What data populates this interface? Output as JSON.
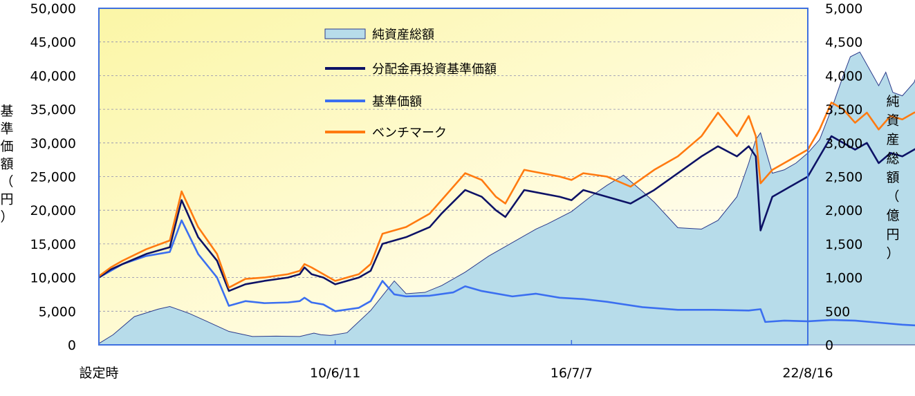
{
  "chart_data": {
    "type": "line",
    "y_axis_left": {
      "label_chars": [
        "基",
        "準",
        "価",
        "額",
        "（",
        "円",
        "）"
      ],
      "ticks": [
        "0",
        "5,000",
        "10,000",
        "15,000",
        "20,000",
        "25,000",
        "30,000",
        "35,000",
        "40,000",
        "45,000",
        "50,000"
      ],
      "ylim": [
        0,
        50000
      ]
    },
    "y_axis_right": {
      "label_chars": [
        "純",
        "資",
        "産",
        "総",
        "額",
        "（",
        "億",
        "円",
        "）"
      ],
      "ticks": [
        "0",
        "500",
        "1,000",
        "1,500",
        "2,000",
        "2,500",
        "3,000",
        "3,500",
        "4,000",
        "4,500",
        "5,000"
      ],
      "ylim": [
        0,
        5000
      ]
    },
    "x_axis": {
      "tick_labels": [
        "設定時",
        "10/6/11",
        "16/7/7",
        "22/8/16"
      ],
      "tick_positions": [
        0,
        1,
        2,
        3
      ]
    },
    "legend": {
      "position": "top-center",
      "entries": [
        "純資産総額",
        "分配金再投資基準価額",
        "基準価額",
        "ベンチマーク"
      ]
    },
    "grid": true,
    "series": [
      {
        "name": "純資産総額",
        "type": "area",
        "axis": "right",
        "color": "#b7dcea",
        "x": [
          0,
          0.06,
          0.15,
          0.25,
          0.3,
          0.38,
          0.45,
          0.55,
          0.65,
          0.75,
          0.85,
          0.91,
          0.94,
          0.98,
          1.05,
          1.15,
          1.25,
          1.3,
          1.38,
          1.45,
          1.55,
          1.65,
          1.75,
          1.85,
          1.9,
          2.0,
          2.08,
          2.15,
          2.22,
          2.3,
          2.35,
          2.45,
          2.55,
          2.62,
          2.7,
          2.75,
          2.78,
          2.8,
          2.85,
          2.9,
          2.95,
          3.0,
          3.05,
          3.1,
          3.15,
          3.18,
          3.22,
          3.26,
          3.3,
          3.33,
          3.36,
          3.4,
          3.45,
          3.5
        ],
        "values": [
          20,
          150,
          420,
          530,
          570,
          470,
          360,
          200,
          125,
          130,
          125,
          175,
          150,
          140,
          180,
          510,
          950,
          760,
          780,
          880,
          1080,
          1320,
          1520,
          1720,
          1800,
          1980,
          2200,
          2370,
          2520,
          2280,
          2120,
          1740,
          1720,
          1850,
          2200,
          2700,
          3050,
          3150,
          2550,
          2600,
          2700,
          2850,
          3050,
          3500,
          4000,
          4280,
          4350,
          4100,
          3850,
          4050,
          3750,
          3700,
          3900,
          4400
        ]
      },
      {
        "name": "分配金再投資基準価額",
        "type": "line",
        "axis": "left",
        "color": "#0d1266",
        "x": [
          0,
          0.05,
          0.1,
          0.2,
          0.3,
          0.35,
          0.42,
          0.5,
          0.55,
          0.62,
          0.7,
          0.8,
          0.85,
          0.87,
          0.9,
          0.95,
          1.0,
          1.1,
          1.15,
          1.2,
          1.3,
          1.4,
          1.45,
          1.55,
          1.62,
          1.68,
          1.72,
          1.8,
          1.95,
          2.0,
          2.05,
          2.15,
          2.25,
          2.35,
          2.45,
          2.55,
          2.62,
          2.7,
          2.75,
          2.78,
          2.8,
          2.85,
          2.9,
          3.0,
          3.05,
          3.1,
          3.15,
          3.2,
          3.25,
          3.3,
          3.35,
          3.4,
          3.45,
          3.5
        ],
        "values": [
          10000,
          11200,
          12000,
          13500,
          14500,
          21500,
          16000,
          12500,
          8000,
          9000,
          9500,
          10000,
          10500,
          11500,
          10500,
          10000,
          9000,
          10000,
          11000,
          15000,
          16000,
          17500,
          19500,
          23000,
          22000,
          20000,
          19000,
          23000,
          22000,
          21500,
          23000,
          22000,
          21000,
          23000,
          25500,
          28000,
          29500,
          28000,
          29500,
          28000,
          17000,
          22000,
          23000,
          25000,
          28000,
          31000,
          30000,
          29000,
          30000,
          27000,
          28500,
          28000,
          29000,
          30000
        ]
      },
      {
        "name": "基準価額",
        "type": "line",
        "axis": "left",
        "color": "#3b6ff0",
        "x": [
          0,
          0.05,
          0.1,
          0.2,
          0.3,
          0.35,
          0.42,
          0.5,
          0.55,
          0.62,
          0.7,
          0.8,
          0.85,
          0.87,
          0.9,
          0.95,
          1.0,
          1.1,
          1.15,
          1.2,
          1.25,
          1.3,
          1.4,
          1.5,
          1.55,
          1.62,
          1.75,
          1.85,
          1.95,
          2.05,
          2.15,
          2.3,
          2.45,
          2.6,
          2.75,
          2.8,
          2.82,
          2.9,
          3.0,
          3.1,
          3.2,
          3.3,
          3.4,
          3.5
        ],
        "values": [
          10000,
          11000,
          12000,
          13200,
          13800,
          18500,
          13500,
          10000,
          5800,
          6500,
          6200,
          6300,
          6500,
          7000,
          6300,
          6000,
          5000,
          5500,
          6500,
          9500,
          7500,
          7200,
          7300,
          7800,
          8700,
          8000,
          7200,
          7600,
          7000,
          6800,
          6400,
          5600,
          5200,
          5200,
          5100,
          5300,
          3400,
          3600,
          3500,
          3700,
          3600,
          3300,
          3000,
          2800
        ]
      },
      {
        "name": "ベンチマーク",
        "type": "line",
        "axis": "left",
        "color": "#ff7a10",
        "x": [
          0,
          0.05,
          0.1,
          0.2,
          0.3,
          0.35,
          0.42,
          0.5,
          0.55,
          0.62,
          0.7,
          0.8,
          0.85,
          0.87,
          0.9,
          0.95,
          1.0,
          1.1,
          1.15,
          1.2,
          1.3,
          1.4,
          1.45,
          1.55,
          1.62,
          1.68,
          1.72,
          1.8,
          1.95,
          2.0,
          2.05,
          2.15,
          2.25,
          2.35,
          2.45,
          2.55,
          2.62,
          2.7,
          2.75,
          2.78,
          2.8,
          2.85,
          2.9,
          3.0,
          3.05,
          3.1,
          3.15,
          3.2,
          3.25,
          3.3,
          3.35,
          3.4,
          3.45,
          3.5
        ],
        "values": [
          10200,
          11500,
          12500,
          14200,
          15500,
          22800,
          17500,
          13500,
          8500,
          9800,
          10000,
          10500,
          11000,
          12000,
          11500,
          10500,
          9500,
          10500,
          12000,
          16500,
          17500,
          19500,
          21500,
          25500,
          24500,
          22000,
          21000,
          26000,
          25000,
          24500,
          25500,
          25000,
          23500,
          26000,
          28000,
          31000,
          34500,
          31000,
          34000,
          31000,
          24000,
          26000,
          27000,
          29000,
          32000,
          36000,
          35000,
          33000,
          34500,
          32000,
          34000,
          33500,
          34500,
          35000
        ]
      }
    ]
  }
}
